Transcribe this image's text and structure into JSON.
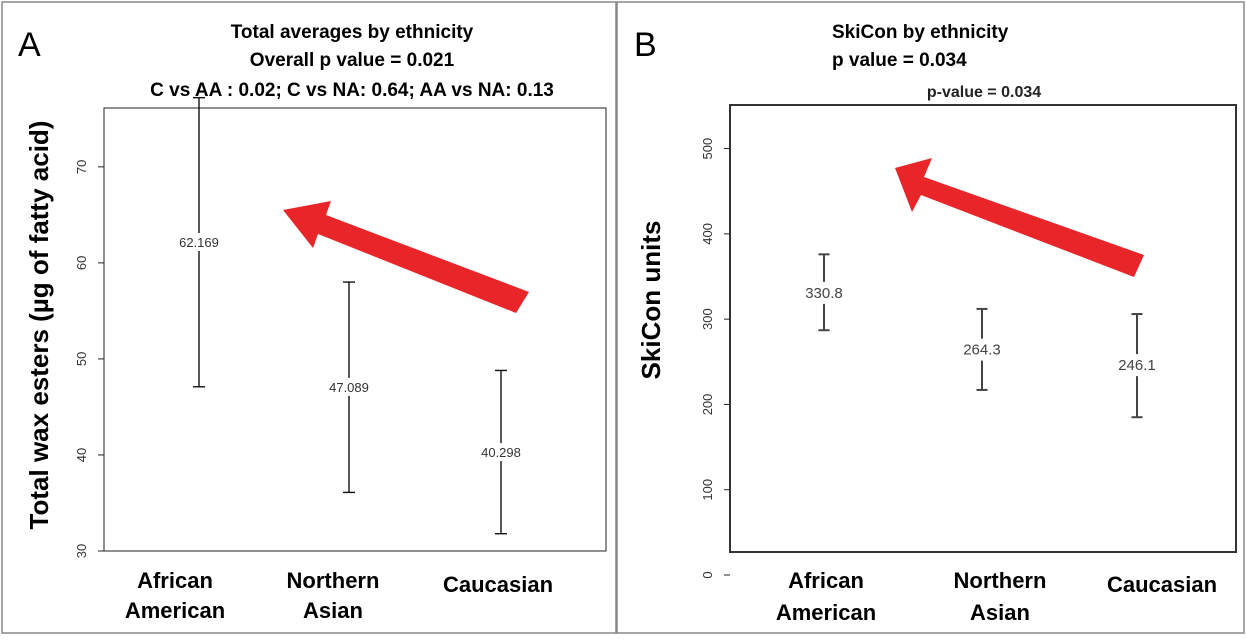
{
  "chart_data": [
    {
      "type": "errorbar",
      "panel_label": "A",
      "title_lines": [
        "Total averages by ethnicity",
        "Overall p value = 0.021",
        "C vs AA : 0.02; C vs NA: 0.64; AA vs NA: 0.13"
      ],
      "ylabel": "Total wax esters (µg of fatty acid)",
      "xlabel": "",
      "ylim": [
        30,
        78
      ],
      "yticks": [
        30,
        40,
        50,
        60,
        70
      ],
      "categories": [
        "African American",
        "Northern Asian",
        "Caucasian"
      ],
      "series": [
        {
          "mean": [
            62.169,
            47.089,
            40.298
          ],
          "mean_labels": [
            "62.169",
            "47.089",
            "40.298"
          ],
          "upper": [
            77.2,
            58.0,
            48.8
          ],
          "lower": [
            47.1,
            36.1,
            31.8
          ]
        }
      ],
      "arrow_color": "#e8262a"
    },
    {
      "type": "errorbar",
      "panel_label": "B",
      "title_lines": [
        "SkiCon by ethnicity",
        "p value = 0.034"
      ],
      "inner_title": "p-value = 0.034",
      "ylabel": "SkiCon units",
      "xlabel": "",
      "ylim": [
        0,
        530
      ],
      "yticks": [
        0,
        100,
        200,
        300,
        400,
        500
      ],
      "categories": [
        "African American",
        "Northern Asian",
        "Caucasian"
      ],
      "series": [
        {
          "mean": [
            330.8,
            264.3,
            246.1
          ],
          "mean_labels": [
            "330.8",
            "264.3",
            "246.1"
          ],
          "upper": [
            376,
            312,
            306
          ],
          "lower": [
            287,
            217,
            185
          ]
        }
      ],
      "arrow_color": "#e8262a"
    }
  ]
}
